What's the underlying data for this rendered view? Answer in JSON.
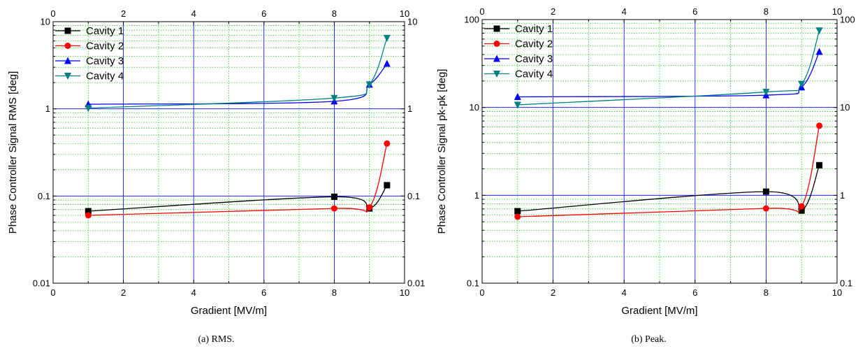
{
  "chart_data": [
    {
      "type": "line",
      "title": "",
      "xlabel": "Gradient [MV/m]",
      "ylabel": "Phase Controller Signal RMS [deg]",
      "xlim": [
        0,
        10
      ],
      "ylim": [
        0.01,
        10
      ],
      "yscale": "log",
      "xticks": [
        "0",
        "2",
        "4",
        "6",
        "8",
        "10"
      ],
      "yticks": [
        "0.01",
        "0.1",
        "1",
        "10"
      ],
      "grid": true,
      "legend_position": "top-left",
      "caption": "(a) RMS.",
      "series": [
        {
          "name": "Cavity 1",
          "color": "#000000",
          "marker": "square",
          "x": [
            1,
            8,
            9,
            9.5
          ],
          "y": [
            0.067,
            0.098,
            0.072,
            0.133
          ]
        },
        {
          "name": "Cavity 2",
          "color": "#ff0000",
          "marker": "circle",
          "x": [
            1,
            8,
            9,
            9.5
          ],
          "y": [
            0.06,
            0.072,
            0.074,
            0.4
          ]
        },
        {
          "name": "Cavity 3",
          "color": "#0000ff",
          "marker": "triangle-up",
          "x": [
            1,
            8,
            9,
            9.5
          ],
          "y": [
            1.13,
            1.22,
            1.9,
            3.3
          ]
        },
        {
          "name": "Cavity 4",
          "color": "#008080",
          "marker": "triangle-down",
          "x": [
            1,
            8,
            9,
            9.5
          ],
          "y": [
            1.02,
            1.33,
            1.9,
            6.5
          ]
        }
      ]
    },
    {
      "type": "line",
      "title": "",
      "xlabel": "Gradient [MV/m]",
      "ylabel": "Phase Controller Signal pk-pk [deg]",
      "xlim": [
        0,
        10
      ],
      "ylim": [
        0.1,
        100
      ],
      "yscale": "log",
      "xticks": [
        "0",
        "2",
        "4",
        "6",
        "8",
        "10"
      ],
      "yticks": [
        "0.1",
        "1",
        "10",
        "100"
      ],
      "grid": true,
      "legend_position": "top-left",
      "caption": "(b) Peak.",
      "series": [
        {
          "name": "Cavity 1",
          "color": "#000000",
          "marker": "square",
          "x": [
            1,
            8,
            9,
            9.5
          ],
          "y": [
            0.66,
            1.1,
            0.67,
            2.2
          ]
        },
        {
          "name": "Cavity 2",
          "color": "#ff0000",
          "marker": "circle",
          "x": [
            1,
            8,
            9,
            9.5
          ],
          "y": [
            0.57,
            0.71,
            0.75,
            6.2
          ]
        },
        {
          "name": "Cavity 3",
          "color": "#0000ff",
          "marker": "triangle-up",
          "x": [
            1,
            8,
            9,
            9.5
          ],
          "y": [
            13.2,
            13.8,
            17.0,
            43
          ]
        },
        {
          "name": "Cavity 4",
          "color": "#008080",
          "marker": "triangle-down",
          "x": [
            1,
            8,
            9,
            9.5
          ],
          "y": [
            10.7,
            15.0,
            18.5,
            75
          ]
        }
      ]
    }
  ]
}
